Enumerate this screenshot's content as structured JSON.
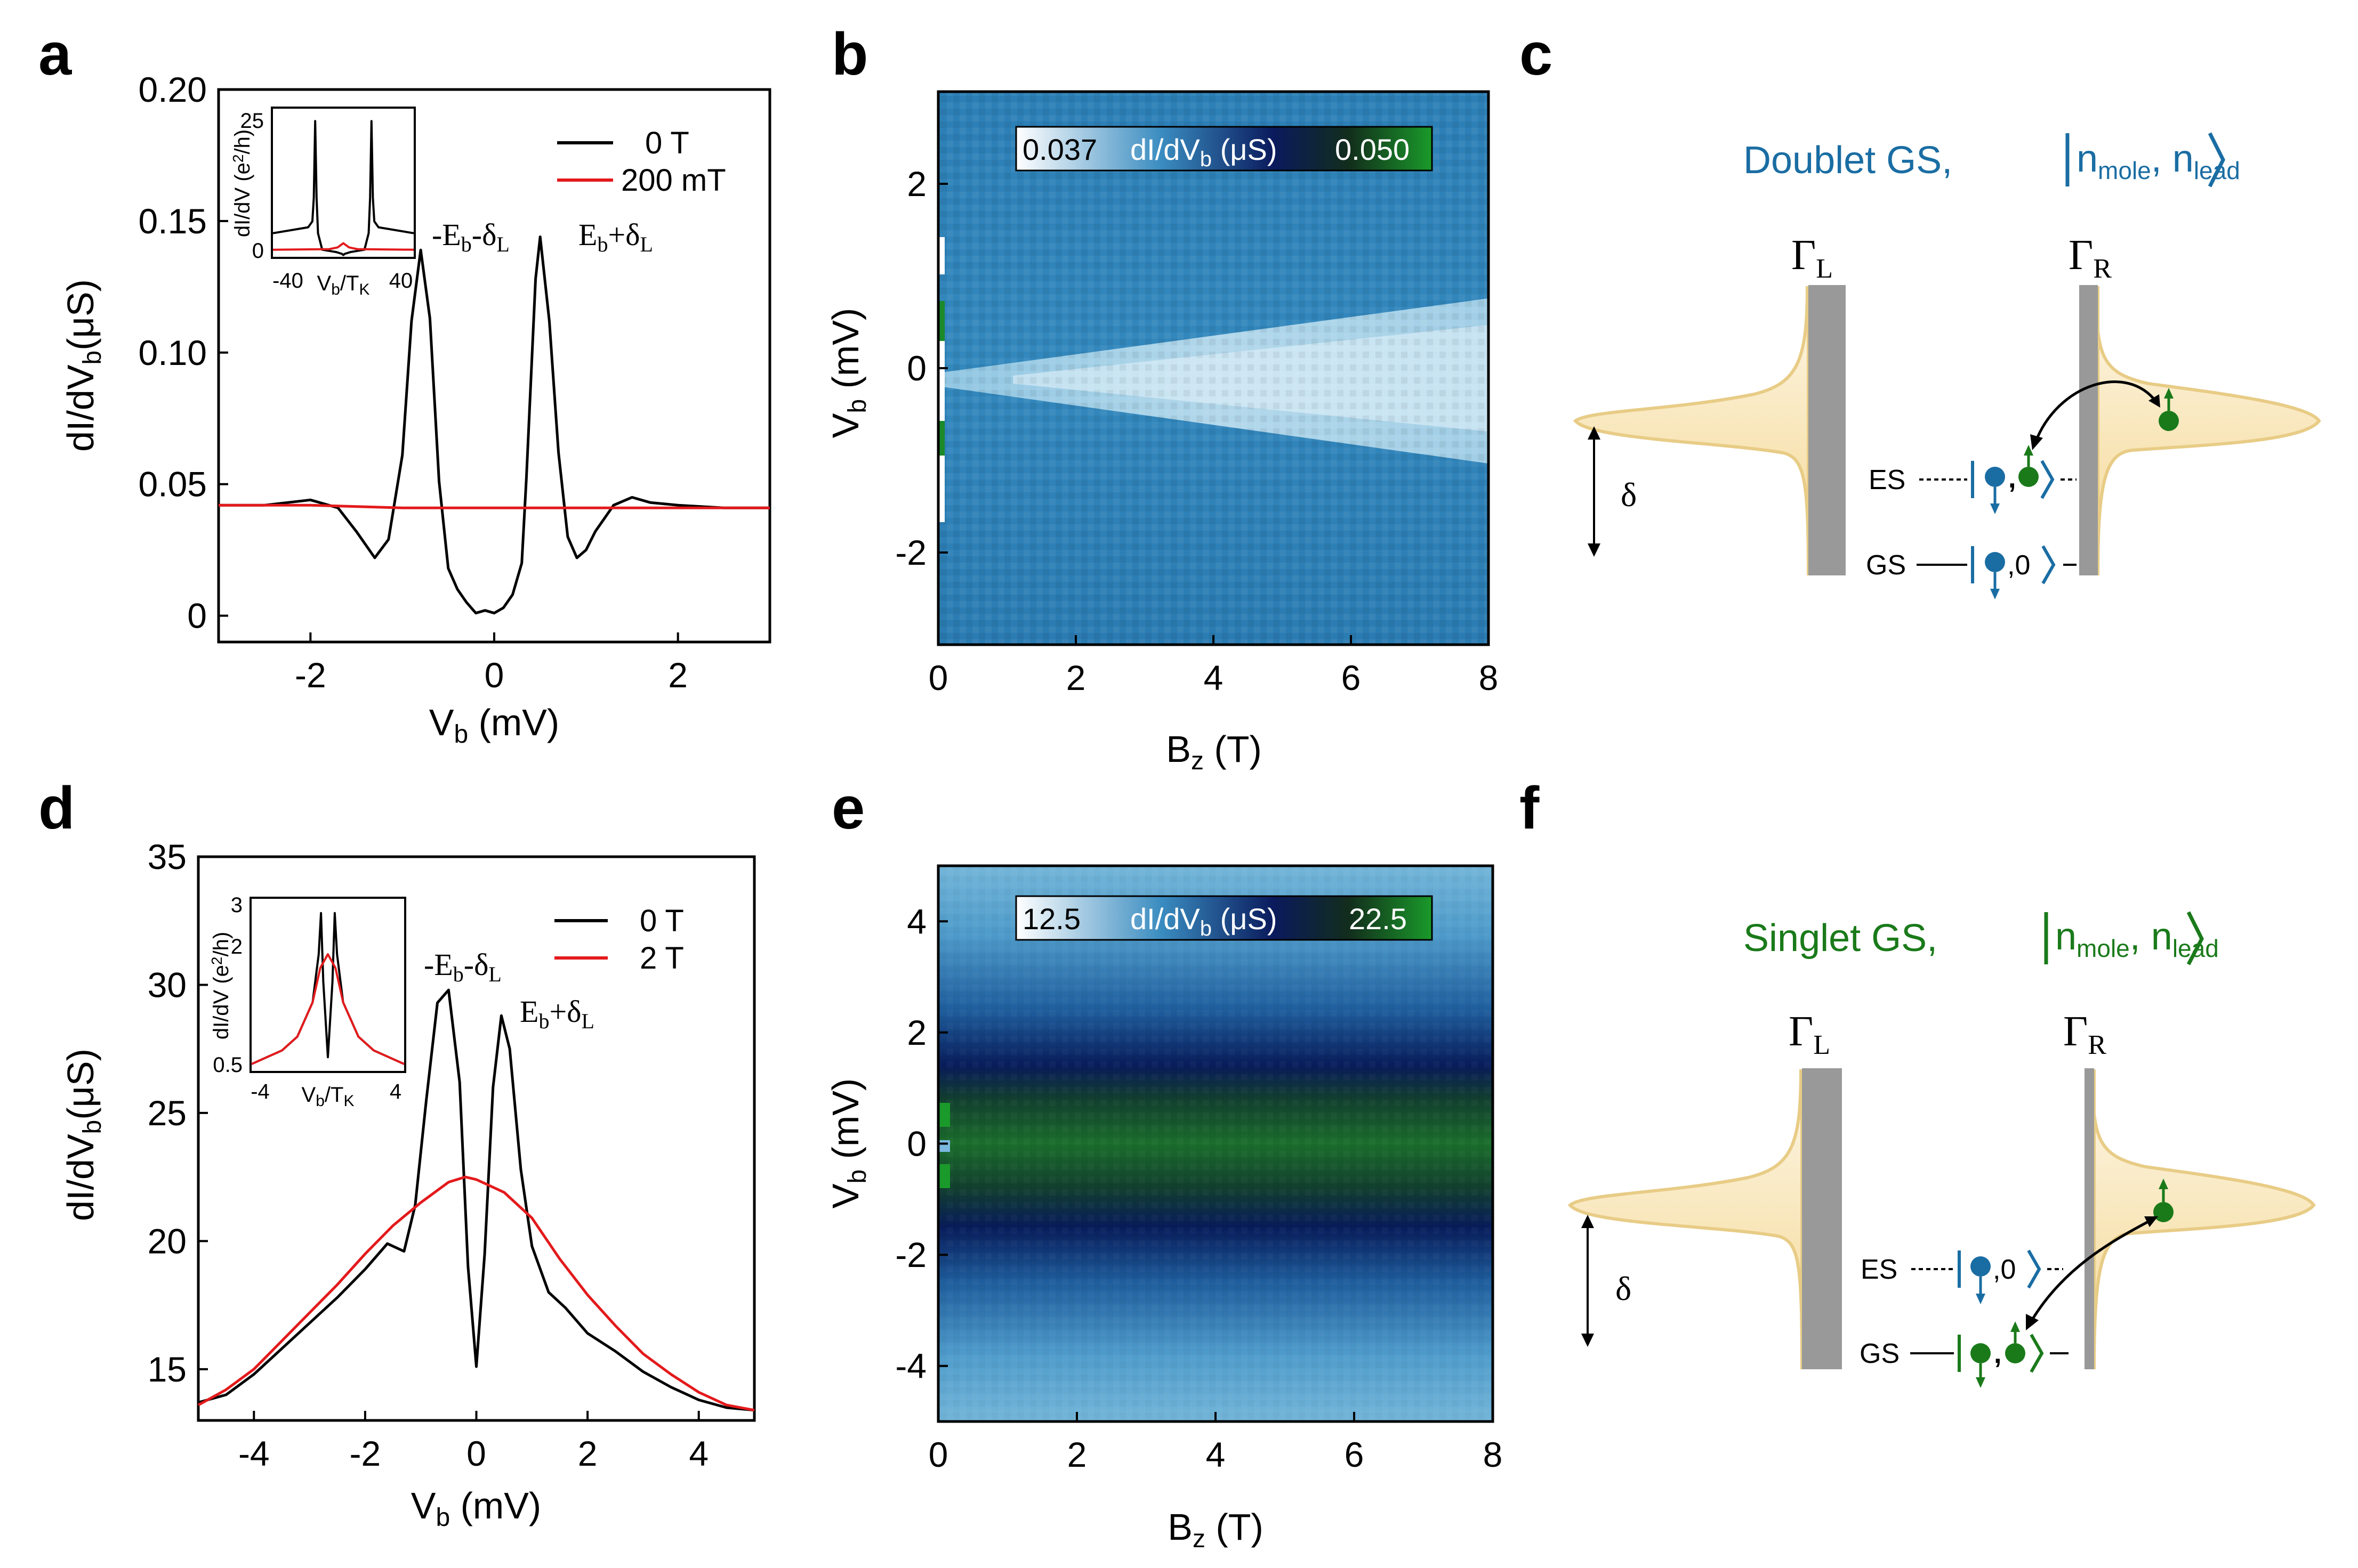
{
  "panels": {
    "a": {
      "label": "a",
      "xlabel": "V_b (mV)",
      "ylabel": "dI/dV_b(μS)",
      "annotations": [
        "-E_b-δ_L",
        "E_b+δ_L"
      ],
      "inset": {
        "xlabel": "V_b/T_K",
        "ylabel": "dI/dV (e²/h)",
        "xticks": [
          "-40",
          "40"
        ],
        "yticks": [
          "25",
          "0"
        ]
      }
    },
    "b": {
      "label": "b",
      "xlabel": "B_z (T)",
      "ylabel": "V_b (mV)",
      "colorbar": {
        "min": "0.037",
        "max": "0.050",
        "title": "dI/dV_b (μS)"
      }
    },
    "c": {
      "label": "c",
      "title": "Doublet GS,",
      "ket": "|n_mole, n_lead⟩",
      "gamma_left": "Γ_L",
      "gamma_right": "Γ_R",
      "delta": "δ",
      "es": "ES",
      "gs": "GS",
      "gs_state": "0"
    },
    "d": {
      "label": "d",
      "xlabel": "V_b (mV)",
      "ylabel": "dI/dV_b(μS)",
      "annotations": [
        "-E_b-δ_L",
        "E_b+δ_L"
      ],
      "inset": {
        "xlabel": "V_b/T_K",
        "ylabel": "dI/dV (e²/h)",
        "xticks": [
          "-4",
          "4"
        ],
        "yticks": [
          "3",
          "2",
          "0.5"
        ]
      }
    },
    "e": {
      "label": "e",
      "xlabel": "B_z (T)",
      "ylabel": "V_b (mV)",
      "colorbar": {
        "min": "12.5",
        "max": "22.5",
        "title": "dI/dV_b (μS)"
      }
    },
    "f": {
      "label": "f",
      "title": "Singlet GS,",
      "ket": "|n_mole, n_lead⟩",
      "gamma_left": "Γ_L",
      "gamma_right": "Γ_R",
      "delta": "δ",
      "es": "ES",
      "gs": "GS",
      "es_state": "0"
    }
  },
  "colors": {
    "black_curve": "#000000",
    "red_curve": "#e31a1c",
    "doublet_blue": "#1a6da3",
    "singlet_green": "#1a7a1a",
    "lead_fill": "#f7e3b3",
    "lead_edge": "#e8cc86",
    "barrier": "#999999"
  },
  "chart_data": [
    {
      "id": "a",
      "type": "line",
      "title": "",
      "xlabel": "V_b (mV)",
      "ylabel": "dI/dV_b(μS)",
      "xlim": [
        -3,
        3
      ],
      "ylim": [
        -0.01,
        0.2
      ],
      "xticks": [
        -2,
        0,
        2
      ],
      "yticks": [
        0,
        0.05,
        0.1,
        0.15,
        0.2
      ],
      "ytick_labels": [
        "0",
        "0.05",
        "0.10",
        "0.15",
        "0.20"
      ],
      "legend_position": "top-right",
      "series": [
        {
          "name": "0 T",
          "color": "#000000",
          "x": [
            -3,
            -2.5,
            -2.0,
            -1.7,
            -1.5,
            -1.3,
            -1.15,
            -1.0,
            -0.9,
            -0.8,
            -0.7,
            -0.6,
            -0.5,
            -0.4,
            -0.3,
            -0.2,
            -0.1,
            0.0,
            0.1,
            0.2,
            0.3,
            0.35,
            0.45,
            0.5,
            0.6,
            0.7,
            0.8,
            0.9,
            1.0,
            1.1,
            1.3,
            1.5,
            1.7,
            2.0,
            2.5,
            3.0
          ],
          "y": [
            0.042,
            0.042,
            0.044,
            0.041,
            0.032,
            0.022,
            0.029,
            0.061,
            0.112,
            0.139,
            0.113,
            0.051,
            0.018,
            0.01,
            0.005,
            0.001,
            0.002,
            0.001,
            0.003,
            0.008,
            0.02,
            0.052,
            0.128,
            0.144,
            0.112,
            0.062,
            0.03,
            0.022,
            0.025,
            0.032,
            0.042,
            0.045,
            0.043,
            0.042,
            0.041,
            0.041
          ]
        },
        {
          "name": "200 mT",
          "color": "#e31a1c",
          "x": [
            -3,
            -2,
            -1,
            0,
            1,
            2,
            3
          ],
          "y": [
            0.042,
            0.042,
            0.041,
            0.041,
            0.041,
            0.041,
            0.041
          ]
        }
      ],
      "annotations": [
        "-E_b-δ_L",
        "E_b+δ_L"
      ]
    },
    {
      "id": "a-inset",
      "type": "line",
      "xlabel": "V_b/T_K",
      "ylabel": "dI/dV (e²/h)",
      "xlim": [
        -50,
        50
      ],
      "ylim": [
        0,
        25
      ],
      "xticks": [
        -40,
        40
      ],
      "yticks": [
        0,
        25
      ],
      "series": [
        {
          "name": "0 T",
          "color": "#000000",
          "x": [
            -50,
            -25,
            -22,
            -21,
            -20,
            -19,
            -18,
            -15,
            -5,
            -1,
            0,
            1,
            5,
            15,
            18,
            19,
            20,
            21,
            22,
            25,
            50
          ],
          "y": [
            4,
            5,
            6,
            10,
            23,
            10,
            4,
            1.2,
            0.8,
            0.5,
            0.3,
            0.5,
            0.8,
            1.2,
            4,
            10,
            23,
            10,
            6,
            5,
            4
          ]
        },
        {
          "name": "200 mT",
          "color": "#e31a1c",
          "x": [
            -50,
            -10,
            -4,
            0,
            4,
            10,
            50
          ],
          "y": [
            1.2,
            1.3,
            1.6,
            2.3,
            1.6,
            1.3,
            1.2
          ]
        }
      ]
    },
    {
      "id": "b",
      "type": "heatmap",
      "xlabel": "B_z (T)",
      "ylabel": "V_b (mV)",
      "xlim": [
        0,
        8
      ],
      "ylim": [
        -3,
        3
      ],
      "xticks": [
        0,
        2,
        4,
        6,
        8
      ],
      "yticks": [
        -2,
        0,
        2
      ],
      "colorbar": {
        "min": 0.037,
        "max": 0.05,
        "label": "dI/dV_b (μS)",
        "colors": [
          "#ffffff",
          "#3a8cc0",
          "#0a1a5c",
          "#123a1a",
          "#1a9a2a"
        ]
      },
      "feature": "wedge of high conductance opening from V_b=0 at B_z=0 to roughly V_b ∈ [-1, 0.8] at B_z=8"
    },
    {
      "id": "d",
      "type": "line",
      "xlabel": "V_b (mV)",
      "ylabel": "dI/dV_b(μS)",
      "xlim": [
        -5,
        5
      ],
      "ylim": [
        13,
        35
      ],
      "xticks": [
        -4,
        -2,
        0,
        2,
        4
      ],
      "yticks": [
        15,
        20,
        25,
        30,
        35
      ],
      "legend_position": "top-right",
      "series": [
        {
          "name": "0 T",
          "color": "#000000",
          "x": [
            -5,
            -4.5,
            -4,
            -3.5,
            -3,
            -2.5,
            -2,
            -1.6,
            -1.3,
            -1.1,
            -0.9,
            -0.7,
            -0.5,
            -0.3,
            -0.15,
            0,
            0.15,
            0.3,
            0.45,
            0.6,
            0.8,
            1.0,
            1.3,
            1.6,
            2,
            2.5,
            3,
            3.5,
            4,
            4.5,
            5
          ],
          "y": [
            13.7,
            14.0,
            14.8,
            15.8,
            16.8,
            17.8,
            18.9,
            19.9,
            19.6,
            21.4,
            25.5,
            29.3,
            29.8,
            26.2,
            19.0,
            15.1,
            19.5,
            26.0,
            28.8,
            27.5,
            22.8,
            19.8,
            18.0,
            17.4,
            16.4,
            15.7,
            14.9,
            14.3,
            13.8,
            13.5,
            13.4
          ]
        },
        {
          "name": "2 T",
          "color": "#e31a1c",
          "x": [
            -5,
            -4.5,
            -4,
            -3.5,
            -3,
            -2.5,
            -2,
            -1.5,
            -1,
            -0.5,
            -0.2,
            0,
            0.5,
            1,
            1.5,
            2,
            2.5,
            3,
            3.5,
            4,
            4.5,
            5
          ],
          "y": [
            13.6,
            14.2,
            15.0,
            16.1,
            17.2,
            18.3,
            19.5,
            20.6,
            21.5,
            22.3,
            22.5,
            22.4,
            21.9,
            20.9,
            19.3,
            17.9,
            16.7,
            15.6,
            14.8,
            14.1,
            13.6,
            13.4
          ]
        }
      ],
      "annotations": [
        "-E_b-δ_L",
        "E_b+δ_L"
      ]
    },
    {
      "id": "d-inset",
      "type": "line",
      "xlabel": "V_b/T_K",
      "ylabel": "dI/dV (e²/h)",
      "xlim": [
        -5,
        5
      ],
      "ylim": [
        0.5,
        3
      ],
      "xticks": [
        -4,
        4
      ],
      "yticks": [
        0.5,
        2,
        3
      ],
      "series": [
        {
          "name": "0 T",
          "color": "#000000",
          "x": [
            -5,
            -3,
            -2,
            -1,
            -0.6,
            -0.45,
            -0.3,
            0,
            0.3,
            0.45,
            0.6,
            1,
            2,
            3,
            5
          ],
          "y": [
            0.6,
            0.8,
            1.0,
            1.5,
            2.2,
            2.8,
            1.8,
            0.7,
            1.8,
            2.8,
            2.2,
            1.5,
            1.0,
            0.8,
            0.6
          ]
        },
        {
          "name": "2 T",
          "color": "#e31a1c",
          "x": [
            -5,
            -3,
            -2,
            -1,
            -0.5,
            0,
            0.5,
            1,
            2,
            3,
            5
          ],
          "y": [
            0.6,
            0.8,
            1.0,
            1.5,
            2.0,
            2.2,
            2.0,
            1.5,
            1.0,
            0.8,
            0.6
          ]
        }
      ]
    },
    {
      "id": "e",
      "type": "heatmap",
      "xlabel": "B_z (T)",
      "ylabel": "V_b (mV)",
      "xlim": [
        0,
        8
      ],
      "ylim": [
        -5,
        5
      ],
      "xticks": [
        0,
        2,
        4,
        6,
        8
      ],
      "yticks": [
        -4,
        -2,
        0,
        2,
        4
      ],
      "colorbar": {
        "min": 12.5,
        "max": 22.5,
        "label": "dI/dV_b (μS)",
        "colors": [
          "#ffffff",
          "#3a8cc0",
          "#0a1a5c",
          "#123a1a",
          "#1a9a2a"
        ]
      },
      "feature": "horizontal band of high conductance centered at V_b≈0, dark blue flanks near V_b≈±1.2, light blue at large |V_b|"
    }
  ]
}
